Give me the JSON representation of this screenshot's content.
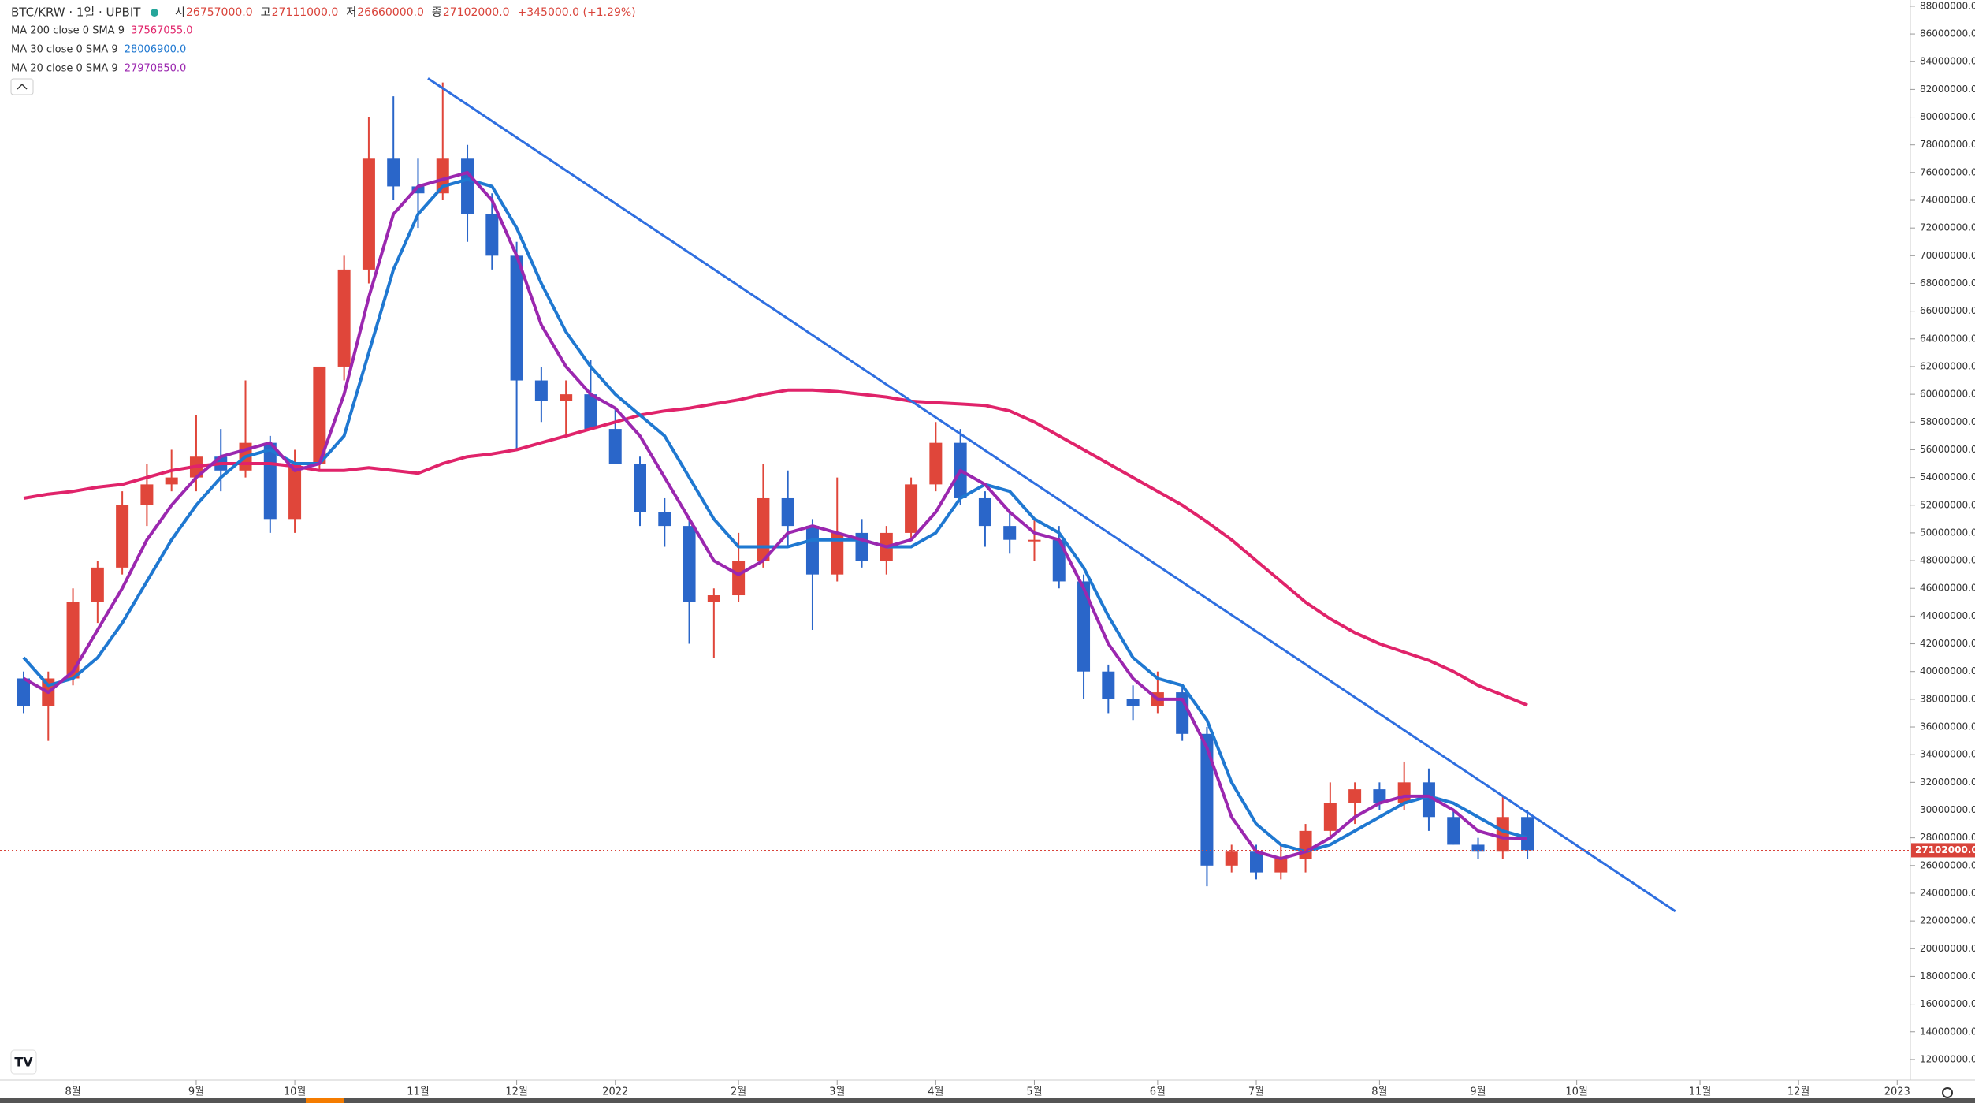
{
  "header": {
    "symbol": "BTC/KRW · 1일 · UPBIT",
    "ohlc": [
      {
        "label": "시",
        "value": "26757000.0"
      },
      {
        "label": "고",
        "value": "27111000.0"
      },
      {
        "label": "저",
        "value": "26660000.0"
      },
      {
        "label": "종",
        "value": "27102000.0"
      }
    ],
    "change": "+345000.0 (+1.29%)"
  },
  "chart_data": {
    "type": "candlestick",
    "up_color": "#e0463a",
    "down_color": "#2a66c9",
    "categories": [
      null,
      null,
      "8월",
      null,
      null,
      null,
      null,
      "9월",
      null,
      null,
      null,
      "10월",
      null,
      null,
      null,
      null,
      "11월",
      null,
      null,
      null,
      "12월",
      null,
      null,
      null,
      "2022",
      null,
      null,
      null,
      null,
      "2월",
      null,
      null,
      null,
      "3월",
      null,
      null,
      null,
      "4월",
      null,
      null,
      null,
      "5월",
      null,
      null,
      null,
      null,
      "6월",
      null,
      null,
      null,
      "7월",
      null,
      null,
      null,
      null,
      "8월",
      null,
      null,
      null,
      "9월",
      null,
      null,
      null,
      "10월",
      null,
      null,
      null,
      null,
      "11월",
      null,
      null,
      null,
      "12월",
      null,
      null,
      null,
      "2023"
    ],
    "open": [
      39500000,
      37500000,
      39500000,
      45000000,
      47500000,
      52000000,
      53500000,
      54000000,
      55500000,
      54500000,
      56500000,
      51000000,
      55000000,
      62000000,
      69000000,
      77000000,
      75000000,
      74500000,
      77000000,
      73000000,
      70000000,
      61000000,
      59500000,
      60000000,
      57500000,
      55000000,
      51500000,
      50500000,
      45000000,
      45500000,
      48000000,
      52500000,
      50500000,
      47000000,
      50000000,
      48000000,
      50000000,
      53500000,
      56500000,
      52500000,
      50500000,
      49500000,
      49500000,
      46500000,
      40000000,
      38000000,
      37500000,
      38500000,
      35500000,
      26000000,
      27000000,
      25500000,
      26500000,
      28500000,
      30500000,
      31500000,
      30500000,
      32000000,
      29500000,
      27500000,
      27000000,
      29500000,
      null,
      null,
      null,
      null,
      null,
      null,
      null,
      null,
      null,
      null,
      null,
      null,
      null,
      null,
      null
    ],
    "high": [
      40000000,
      40000000,
      46000000,
      48000000,
      53000000,
      55000000,
      56000000,
      58500000,
      57500000,
      61000000,
      57000000,
      56000000,
      62000000,
      70000000,
      80000000,
      81500000,
      77000000,
      82500000,
      78000000,
      74500000,
      71000000,
      62000000,
      61000000,
      62500000,
      59000000,
      55500000,
      52500000,
      51000000,
      46000000,
      50000000,
      55000000,
      54500000,
      51000000,
      54000000,
      51000000,
      50500000,
      54000000,
      58000000,
      57500000,
      53000000,
      51500000,
      51000000,
      50500000,
      47000000,
      40500000,
      39000000,
      40000000,
      39000000,
      36000000,
      27500000,
      27500000,
      27500000,
      29000000,
      32000000,
      32000000,
      32000000,
      33500000,
      33000000,
      30000000,
      28000000,
      31000000,
      30000000,
      null,
      null,
      null,
      null,
      null,
      null,
      null,
      null,
      null,
      null,
      null,
      null,
      null,
      null,
      null
    ],
    "low": [
      37000000,
      35000000,
      39000000,
      43500000,
      47000000,
      50500000,
      53000000,
      53000000,
      53000000,
      54000000,
      50000000,
      50000000,
      54500000,
      61000000,
      68000000,
      74000000,
      72000000,
      74000000,
      71000000,
      69000000,
      56000000,
      58000000,
      57000000,
      58000000,
      55000000,
      50500000,
      49000000,
      42000000,
      41000000,
      45000000,
      47500000,
      49000000,
      43000000,
      46500000,
      47500000,
      47000000,
      49500000,
      53000000,
      52000000,
      49000000,
      48500000,
      48000000,
      46000000,
      38000000,
      37000000,
      36500000,
      37000000,
      35000000,
      24500000,
      25500000,
      25000000,
      25000000,
      25500000,
      28000000,
      29000000,
      30000000,
      30000000,
      28500000,
      27500000,
      26500000,
      26500000,
      26500000,
      null,
      null,
      null,
      null,
      null,
      null,
      null,
      null,
      null,
      null,
      null,
      null,
      null,
      null,
      null
    ],
    "close": [
      37500000,
      39500000,
      45000000,
      47500000,
      52000000,
      53500000,
      54000000,
      55500000,
      54500000,
      56500000,
      51000000,
      55000000,
      62000000,
      69000000,
      77000000,
      75000000,
      74500000,
      77000000,
      73000000,
      70000000,
      61000000,
      59500000,
      60000000,
      57500000,
      55000000,
      51500000,
      50500000,
      45000000,
      45500000,
      48000000,
      52500000,
      50500000,
      47000000,
      50000000,
      48000000,
      50000000,
      53500000,
      56500000,
      52500000,
      50500000,
      49500000,
      49500000,
      46500000,
      40000000,
      38000000,
      37500000,
      38500000,
      35500000,
      26000000,
      27000000,
      25500000,
      26500000,
      28500000,
      30500000,
      31500000,
      30500000,
      32000000,
      29500000,
      27500000,
      27000000,
      29500000,
      27102000,
      null,
      null,
      null,
      null,
      null,
      null,
      null,
      null,
      null,
      null,
      null,
      null,
      null,
      null,
      null
    ],
    "series": [
      {
        "name": "MA 200 close 0 SMA 9",
        "last_label": "37567055.0",
        "color": "#e0236a",
        "values": [
          52500000,
          52800000,
          53000000,
          53300000,
          53500000,
          54000000,
          54500000,
          54800000,
          55000000,
          55000000,
          55000000,
          54800000,
          54500000,
          54500000,
          54700000,
          54500000,
          54300000,
          55000000,
          55500000,
          55700000,
          56000000,
          56500000,
          57000000,
          57500000,
          58000000,
          58500000,
          58800000,
          59000000,
          59300000,
          59600000,
          60000000,
          60300000,
          60300000,
          60200000,
          60000000,
          59800000,
          59500000,
          59400000,
          59300000,
          59200000,
          58800000,
          58000000,
          57000000,
          56000000,
          55000000,
          54000000,
          53000000,
          52000000,
          50800000,
          49500000,
          48000000,
          46500000,
          45000000,
          43800000,
          42800000,
          42000000,
          41400000,
          40800000,
          40000000,
          39000000,
          38300000,
          37567055,
          null,
          null,
          null,
          null,
          null,
          null,
          null,
          null,
          null,
          null,
          null,
          null,
          null,
          null,
          null
        ]
      },
      {
        "name": "MA 30 close 0 SMA 9",
        "last_label": "28006900.0",
        "color": "#1f78d1",
        "values": [
          41000000,
          39000000,
          39500000,
          41000000,
          43500000,
          46500000,
          49500000,
          52000000,
          54000000,
          55500000,
          56000000,
          55000000,
          55000000,
          57000000,
          63000000,
          69000000,
          73000000,
          75000000,
          75500000,
          75000000,
          72000000,
          68000000,
          64500000,
          62000000,
          60000000,
          58500000,
          57000000,
          54000000,
          51000000,
          49000000,
          49000000,
          49000000,
          49500000,
          49500000,
          49500000,
          49000000,
          49000000,
          50000000,
          52500000,
          53500000,
          53000000,
          51000000,
          50000000,
          47500000,
          44000000,
          41000000,
          39500000,
          39000000,
          36500000,
          32000000,
          29000000,
          27500000,
          27000000,
          27500000,
          28500000,
          29500000,
          30500000,
          31000000,
          30500000,
          29500000,
          28500000,
          28006900,
          null,
          null,
          null,
          null,
          null,
          null,
          null,
          null,
          null,
          null,
          null,
          null,
          null,
          null,
          null
        ]
      },
      {
        "name": "MA 20 close 0 SMA 9",
        "last_label": "27970850.0",
        "color": "#9b27af",
        "values": [
          39500000,
          38500000,
          40000000,
          43000000,
          46000000,
          49500000,
          52000000,
          54000000,
          55500000,
          56000000,
          56500000,
          54500000,
          55000000,
          60000000,
          67000000,
          73000000,
          75000000,
          75500000,
          76000000,
          74000000,
          70000000,
          65000000,
          62000000,
          60000000,
          59000000,
          57000000,
          54000000,
          51000000,
          48000000,
          47000000,
          48000000,
          50000000,
          50500000,
          50000000,
          49500000,
          49000000,
          49500000,
          51500000,
          54500000,
          53500000,
          51500000,
          50000000,
          49500000,
          46000000,
          42000000,
          39500000,
          38000000,
          38000000,
          34500000,
          29500000,
          27000000,
          26500000,
          27000000,
          28000000,
          29500000,
          30500000,
          31000000,
          31000000,
          30000000,
          28500000,
          28000000,
          27970850,
          null,
          null,
          null,
          null,
          null,
          null,
          null,
          null,
          null,
          null,
          null,
          null,
          null,
          null,
          null
        ]
      }
    ],
    "trendline": {
      "color": "#2f6fe0",
      "start": {
        "x": 16.4,
        "value": 82800000
      },
      "end": {
        "x": 67,
        "value": 22700000
      }
    },
    "last_price": {
      "value": 27102000,
      "label": "27102000.0",
      "color": "#d9433a"
    },
    "ylim": [
      10630000,
      88450000
    ],
    "yticks": [
      {
        "value": 12000000,
        "label": "12000000.0"
      },
      {
        "value": 14000000,
        "label": "14000000.0"
      },
      {
        "value": 16000000,
        "label": "16000000.0"
      },
      {
        "value": 18000000,
        "label": "18000000.0"
      },
      {
        "value": 20000000,
        "label": "20000000.0"
      },
      {
        "value": 22000000,
        "label": "22000000.0"
      },
      {
        "value": 24000000,
        "label": "24000000.0"
      },
      {
        "value": 26000000,
        "label": "26000000.0"
      },
      {
        "value": 28000000,
        "label": "28000000.0"
      },
      {
        "value": 30000000,
        "label": "30000000.0"
      },
      {
        "value": 32000000,
        "label": "32000000.0"
      },
      {
        "value": 34000000,
        "label": "34000000.0"
      },
      {
        "value": 36000000,
        "label": "36000000.0"
      },
      {
        "value": 38000000,
        "label": "38000000.0"
      },
      {
        "value": 40000000,
        "label": "40000000.0"
      },
      {
        "value": 42000000,
        "label": "42000000.0"
      },
      {
        "value": 44000000,
        "label": "44000000.0"
      },
      {
        "value": 46000000,
        "label": "46000000.0"
      },
      {
        "value": 48000000,
        "label": "48000000.0"
      },
      {
        "value": 50000000,
        "label": "50000000.0"
      },
      {
        "value": 52000000,
        "label": "52000000.0"
      },
      {
        "value": 54000000,
        "label": "54000000.0"
      },
      {
        "value": 56000000,
        "label": "56000000.0"
      },
      {
        "value": 58000000,
        "label": "58000000.0"
      },
      {
        "value": 60000000,
        "label": "60000000.0"
      },
      {
        "value": 62000000,
        "label": "62000000.0"
      },
      {
        "value": 64000000,
        "label": "64000000.0"
      },
      {
        "value": 66000000,
        "label": "66000000.0"
      },
      {
        "value": 68000000,
        "label": "68000000.0"
      },
      {
        "value": 70000000,
        "label": "70000000.0"
      },
      {
        "value": 72000000,
        "label": "72000000.0"
      },
      {
        "value": 74000000,
        "label": "74000000.0"
      },
      {
        "value": 76000000,
        "label": "76000000.0"
      },
      {
        "value": 78000000,
        "label": "78000000.0"
      },
      {
        "value": 80000000,
        "label": "80000000.0"
      },
      {
        "value": 82000000,
        "label": "82000000.0"
      },
      {
        "value": 84000000,
        "label": "84000000.0"
      },
      {
        "value": 86000000,
        "label": "86000000.0"
      },
      {
        "value": 88000000,
        "label": "88000000.0"
      }
    ]
  }
}
